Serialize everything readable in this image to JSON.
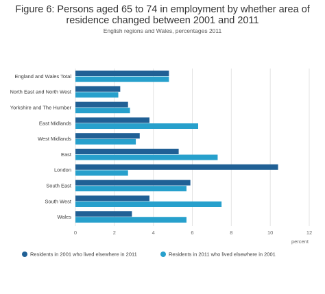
{
  "chart_data": {
    "type": "bar",
    "orientation": "horizontal",
    "title_lines": [
      "Figure 6: Persons aged 65 to 74 in employment by whether area of",
      "residence changed between 2001 and 2011"
    ],
    "subtitle": "English regions and Wales, percentages 2011",
    "xlabel": "percent",
    "ylabel": "",
    "xlim": [
      0,
      12
    ],
    "xticks": [
      0,
      2,
      4,
      6,
      8,
      10,
      12
    ],
    "grid": true,
    "legend_position": "bottom",
    "categories": [
      "England and Wales Total",
      "North East and North West",
      "Yorkshire and The Humber",
      "East Midlands",
      "West Midlands",
      "East",
      "London",
      "South East",
      "South West",
      "Wales"
    ],
    "series": [
      {
        "name": "Residents in 2001 who lived elsewhere in 2011",
        "color": "#206095",
        "values": [
          4.8,
          2.3,
          2.7,
          3.8,
          3.3,
          5.3,
          10.4,
          5.9,
          3.8,
          2.9
        ]
      },
      {
        "name": "Residents in 2011 who lived elsewhere in 2001",
        "color": "#27a0cc",
        "values": [
          4.8,
          2.2,
          2.8,
          6.3,
          3.1,
          7.3,
          2.7,
          5.7,
          7.5,
          5.7
        ]
      }
    ]
  }
}
